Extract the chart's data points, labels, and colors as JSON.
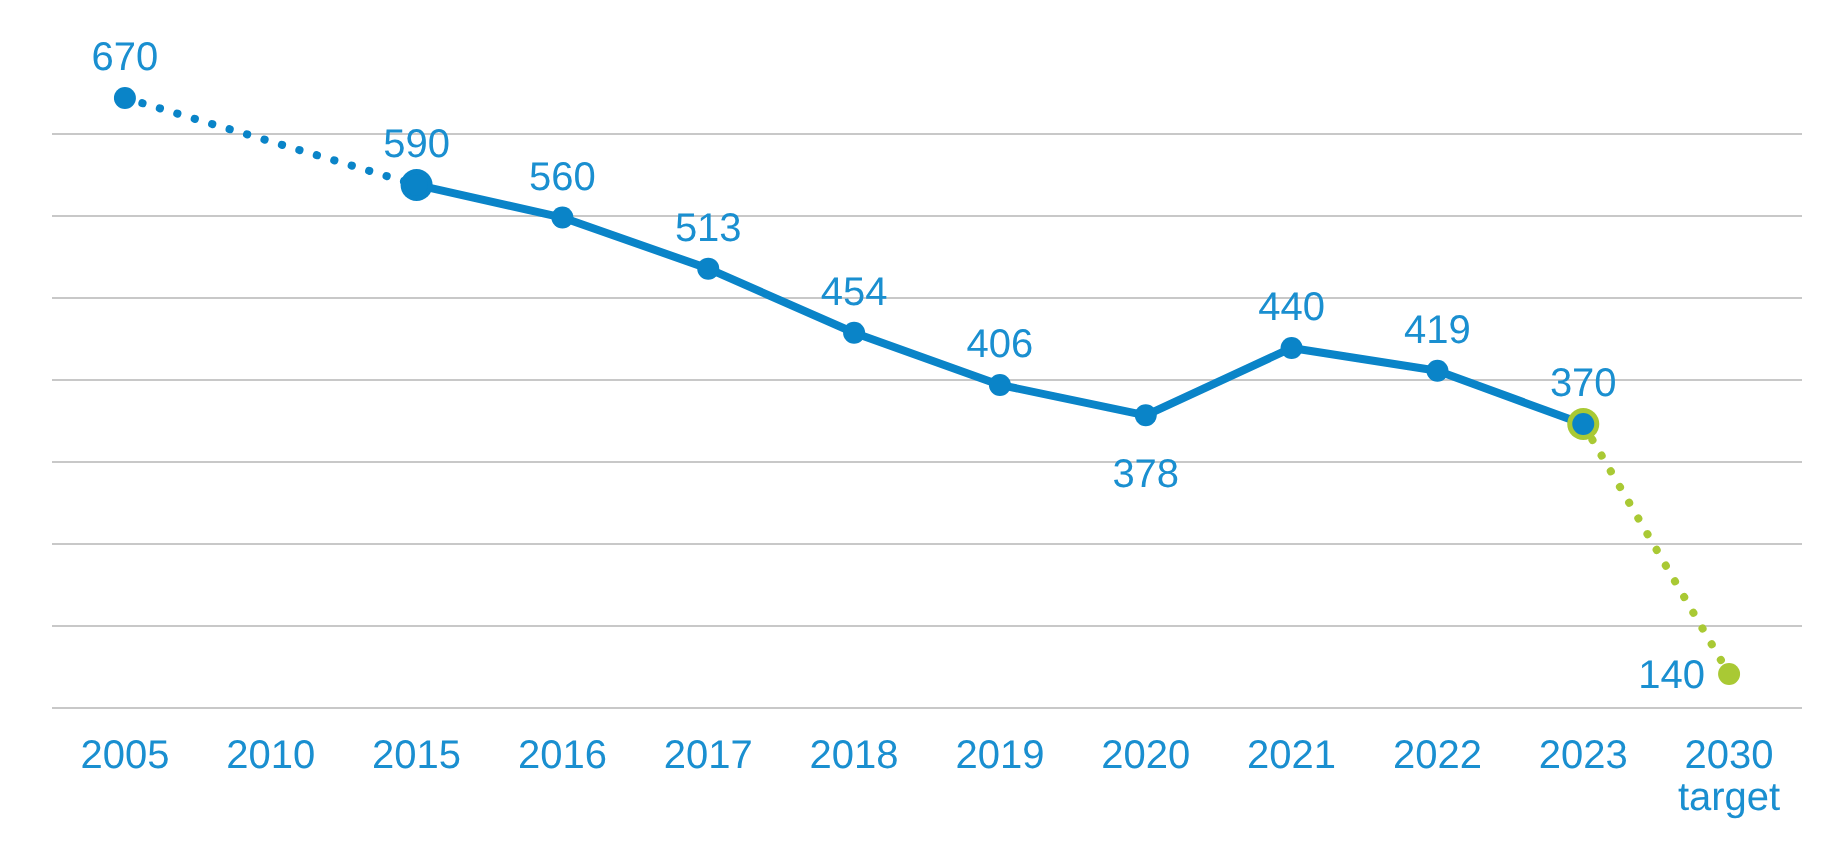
{
  "chart_data": {
    "type": "line",
    "categories": [
      "2005",
      "2010",
      "2015",
      "2016",
      "2017",
      "2018",
      "2019",
      "2020",
      "2021",
      "2022",
      "2023",
      "2030 target"
    ],
    "series": [
      {
        "color": "#0a84c8",
        "line_style": "dotted",
        "values": [
          670,
          null,
          590,
          null,
          null,
          null,
          null,
          null,
          null,
          null,
          null,
          null
        ],
        "value_labels": [
          "670",
          null,
          null,
          null,
          null,
          null,
          null,
          null,
          null,
          null,
          null,
          null
        ]
      },
      {
        "color": "#0a84c8",
        "line_style": "solid",
        "values": [
          null,
          null,
          590,
          560,
          513,
          454,
          406,
          378,
          440,
          419,
          370,
          null
        ],
        "value_labels": [
          null,
          null,
          "590",
          "560",
          "513",
          "454",
          "406",
          "378",
          "440",
          "419",
          "370",
          null
        ]
      },
      {
        "color": "#a9c934",
        "line_style": "dotted",
        "values": [
          null,
          null,
          null,
          null,
          null,
          null,
          null,
          null,
          null,
          null,
          370,
          140
        ],
        "value_labels": [
          null,
          null,
          null,
          null,
          null,
          null,
          null,
          null,
          null,
          null,
          null,
          "140"
        ]
      }
    ],
    "grid": "y",
    "tick_labels": "x",
    "marker": "circle"
  }
}
